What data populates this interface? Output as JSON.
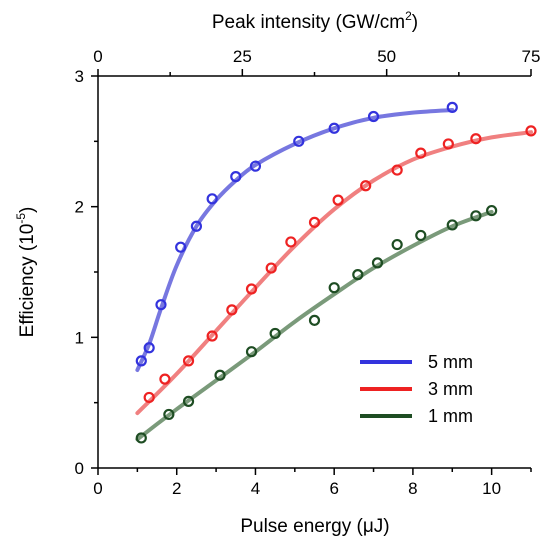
{
  "chart_data": {
    "type": "scatter",
    "title": "",
    "xlabel": "Pulse energy (μJ)",
    "ylabel_main": "Efficiency (10",
    "ylabel_sup": "-5",
    "ylabel_end": ")",
    "top_xlabel_main": "Peak intensity (GW/cm",
    "top_xlabel_sup": "2",
    "top_xlabel_end": ")",
    "xlim": [
      0,
      11
    ],
    "ylim": [
      0,
      3
    ],
    "top_xlim": [
      0,
      75
    ],
    "x_ticks": [
      "0",
      "2",
      "4",
      "6",
      "8",
      "10"
    ],
    "y_ticks": [
      "0",
      "1",
      "2",
      "3"
    ],
    "top_ticks": [
      "0",
      "25",
      "50",
      "75"
    ],
    "grid": false,
    "legend_position": "bottom-right",
    "series": [
      {
        "name": "5 mm",
        "color": "#3333dd",
        "fit_color": "#7777e0",
        "points": [
          [
            1.1,
            0.82
          ],
          [
            1.3,
            0.92
          ],
          [
            1.6,
            1.25
          ],
          [
            2.1,
            1.69
          ],
          [
            2.5,
            1.85
          ],
          [
            2.9,
            2.06
          ],
          [
            3.5,
            2.23
          ],
          [
            4.0,
            2.31
          ],
          [
            5.1,
            2.5
          ],
          [
            6.0,
            2.6
          ],
          [
            7.0,
            2.69
          ],
          [
            9.0,
            2.76
          ]
        ],
        "fit": [
          [
            1.0,
            0.75
          ],
          [
            1.3,
            0.95
          ],
          [
            1.6,
            1.22
          ],
          [
            2.0,
            1.55
          ],
          [
            2.5,
            1.85
          ],
          [
            3.0,
            2.05
          ],
          [
            3.5,
            2.2
          ],
          [
            4.0,
            2.32
          ],
          [
            5.0,
            2.48
          ],
          [
            6.0,
            2.6
          ],
          [
            7.0,
            2.68
          ],
          [
            8.0,
            2.72
          ],
          [
            9.0,
            2.74
          ]
        ]
      },
      {
        "name": "3 mm",
        "color": "#ee2222",
        "fit_color": "#f08080",
        "points": [
          [
            1.3,
            0.54
          ],
          [
            1.7,
            0.68
          ],
          [
            2.3,
            0.82
          ],
          [
            2.9,
            1.01
          ],
          [
            3.4,
            1.21
          ],
          [
            3.9,
            1.37
          ],
          [
            4.4,
            1.53
          ],
          [
            4.9,
            1.73
          ],
          [
            5.5,
            1.88
          ],
          [
            6.1,
            2.05
          ],
          [
            6.8,
            2.16
          ],
          [
            7.6,
            2.28
          ],
          [
            8.2,
            2.41
          ],
          [
            8.9,
            2.48
          ],
          [
            9.6,
            2.52
          ],
          [
            11.0,
            2.58
          ]
        ],
        "fit": [
          [
            1.0,
            0.42
          ],
          [
            2.0,
            0.72
          ],
          [
            3.0,
            1.05
          ],
          [
            4.0,
            1.38
          ],
          [
            5.0,
            1.7
          ],
          [
            6.0,
            1.98
          ],
          [
            7.0,
            2.2
          ],
          [
            8.0,
            2.36
          ],
          [
            9.0,
            2.46
          ],
          [
            10.0,
            2.53
          ],
          [
            11.0,
            2.57
          ]
        ]
      },
      {
        "name": "1 mm",
        "color": "#1e4d23",
        "fit_color": "#7a9a7a",
        "points": [
          [
            1.1,
            0.23
          ],
          [
            1.8,
            0.41
          ],
          [
            2.3,
            0.51
          ],
          [
            3.1,
            0.71
          ],
          [
            3.9,
            0.89
          ],
          [
            4.5,
            1.03
          ],
          [
            5.5,
            1.13
          ],
          [
            6.0,
            1.38
          ],
          [
            6.6,
            1.48
          ],
          [
            7.1,
            1.57
          ],
          [
            7.6,
            1.71
          ],
          [
            8.2,
            1.78
          ],
          [
            9.0,
            1.86
          ],
          [
            9.6,
            1.93
          ],
          [
            10.0,
            1.97
          ]
        ],
        "fit": [
          [
            1.0,
            0.22
          ],
          [
            2.0,
            0.45
          ],
          [
            3.0,
            0.67
          ],
          [
            4.0,
            0.89
          ],
          [
            5.0,
            1.12
          ],
          [
            6.0,
            1.33
          ],
          [
            7.0,
            1.53
          ],
          [
            8.0,
            1.7
          ],
          [
            9.0,
            1.85
          ],
          [
            10.0,
            1.96
          ]
        ]
      }
    ]
  }
}
